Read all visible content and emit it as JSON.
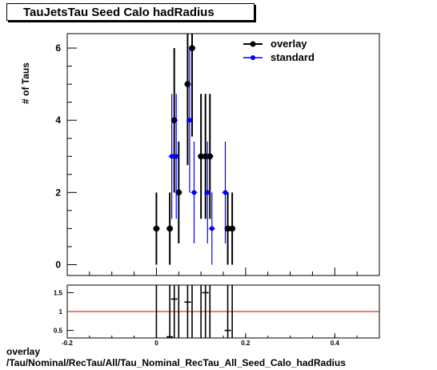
{
  "title": "TauJetsTau Seed Calo hadRadius",
  "footer": {
    "line1": "overlay",
    "line2": "/Tau/Nominal/RecTau/All/Tau_Nominal_RecTau_All_Seed_Calo_hadRadius"
  },
  "colors": {
    "overlay": "#000000",
    "standard": "#0000ff",
    "ratio_line": "#cc0000"
  },
  "chart_data": [
    {
      "type": "scatter",
      "ylabel": "# of Taus",
      "xlim": [
        -0.2,
        0.5
      ],
      "ylim": [
        -0.3,
        6.4
      ],
      "y_ticks": [
        0,
        2,
        4,
        6
      ],
      "legend": {
        "placement": "top-right",
        "entries": [
          "overlay",
          "standard"
        ]
      },
      "series": [
        {
          "name": "overlay",
          "points": [
            {
              "x": 0.0,
              "y": 1,
              "err": 1.0
            },
            {
              "x": 0.03,
              "y": 1,
              "err": 1.0
            },
            {
              "x": 0.04,
              "y": 4,
              "err": 2.0
            },
            {
              "x": 0.05,
              "y": 2,
              "err": 1.41
            },
            {
              "x": 0.07,
              "y": 5,
              "err": 2.24
            },
            {
              "x": 0.08,
              "y": 6,
              "err": 2.45
            },
            {
              "x": 0.1,
              "y": 3,
              "err": 1.73
            },
            {
              "x": 0.11,
              "y": 3,
              "err": 1.73
            },
            {
              "x": 0.12,
              "y": 3,
              "err": 1.73
            },
            {
              "x": 0.16,
              "y": 1,
              "err": 1.0
            },
            {
              "x": 0.17,
              "y": 1,
              "err": 1.0
            }
          ]
        },
        {
          "name": "standard",
          "points": [
            {
              "x": 0.03,
              "y": 3,
              "err": 1.73
            },
            {
              "x": 0.04,
              "y": 3,
              "err": 1.73
            },
            {
              "x": 0.07,
              "y": 4,
              "err": 2.0
            },
            {
              "x": 0.08,
              "y": 2,
              "err": 1.41
            },
            {
              "x": 0.11,
              "y": 2,
              "err": 1.41
            },
            {
              "x": 0.12,
              "y": 1,
              "err": 1.0
            },
            {
              "x": 0.15,
              "y": 2,
              "err": 1.41
            }
          ]
        }
      ]
    },
    {
      "type": "scatter",
      "xlim": [
        -0.2,
        0.5
      ],
      "ylim": [
        0.3,
        1.7
      ],
      "x_ticks": [
        -0.2,
        0,
        0.2,
        0.4
      ],
      "x_tick_labels": [
        "-0.2",
        "0",
        "0.2",
        "0.4"
      ],
      "y_ticks": [
        0.5,
        1,
        1.5
      ],
      "y_tick_labels": [
        "0.5",
        "1",
        "1.5"
      ],
      "reference_line": 1,
      "points": [
        {
          "x": 0.03,
          "y": 0.33
        },
        {
          "x": 0.04,
          "y": 1.33
        },
        {
          "x": 0.07,
          "y": 1.25
        },
        {
          "x": 0.11,
          "y": 1.5
        },
        {
          "x": 0.16,
          "y": 0.5
        }
      ]
    }
  ]
}
